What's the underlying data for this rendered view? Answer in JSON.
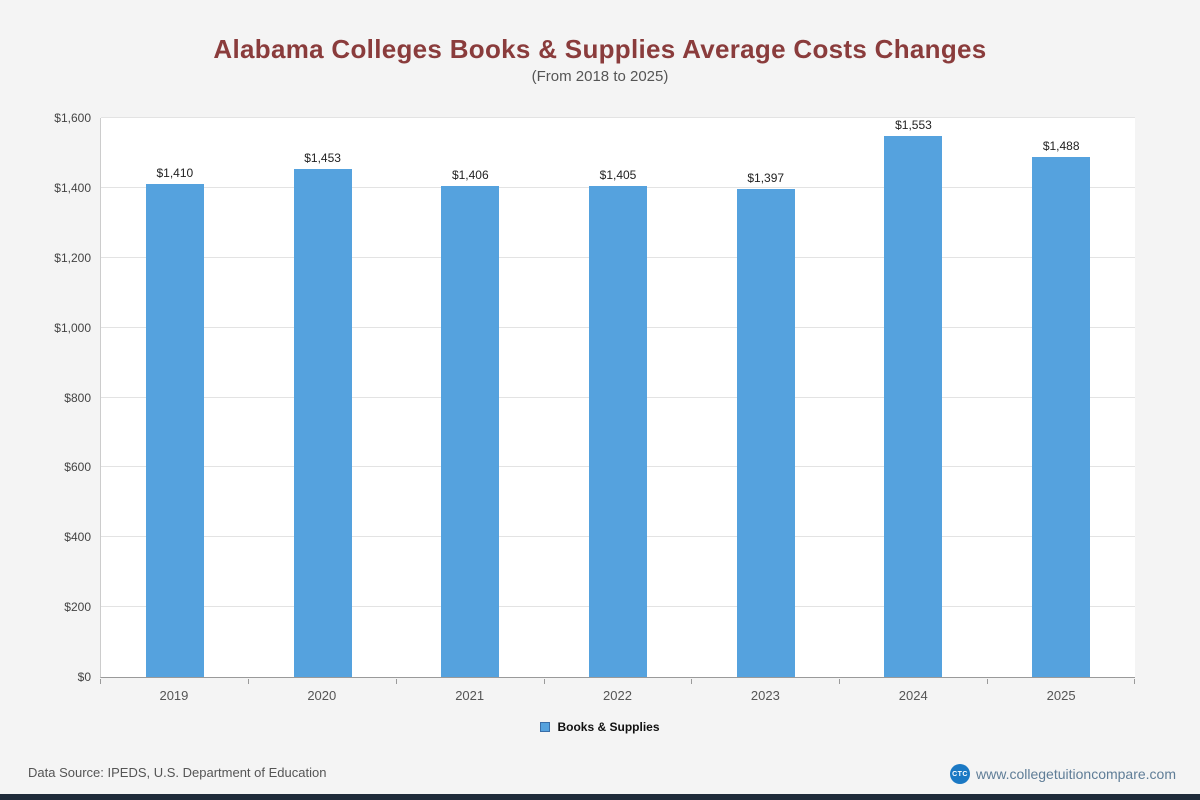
{
  "title": "Alabama Colleges  Books & Supplies Average Costs Changes",
  "subtitle": "(From 2018 to 2025)",
  "chart_data": {
    "type": "bar",
    "categories": [
      "2019",
      "2020",
      "2021",
      "2022",
      "2023",
      "2024",
      "2025"
    ],
    "values": [
      1410,
      1453,
      1406,
      1405,
      1397,
      1553,
      1488
    ],
    "value_labels": [
      "$1,410",
      "$1,453",
      "$1,406",
      "$1,405",
      "$1,397",
      "$1,553",
      "$1,488"
    ],
    "title": "Alabama Colleges  Books & Supplies Average Costs Changes",
    "subtitle": "(From 2018 to 2025)",
    "xlabel": "",
    "ylabel": "",
    "ylim": [
      0,
      1600
    ],
    "ytick_step": 200,
    "ytick_labels": [
      "$0",
      "$200",
      "$400",
      "$600",
      "$800",
      "$1,000",
      "$1,200",
      "$1,400",
      "$1,600"
    ],
    "grid": true,
    "legend_position": "bottom",
    "bar_color": "#55a2de",
    "legend": [
      {
        "label": "Books & Supplies",
        "color": "#55a2de"
      }
    ]
  },
  "footer": {
    "source": "Data Source: IPEDS, U.S. Department of Education",
    "logo_text": "CTC",
    "website": "www.collegetuitioncompare.com"
  },
  "colors": {
    "title": "#8a3c3c",
    "bar": "#55a2de",
    "page_background": "#f4f4f4",
    "plot_background": "#ffffff",
    "bottom_strip": "#1f2b3a",
    "logo_blue": "#1b79c4"
  }
}
